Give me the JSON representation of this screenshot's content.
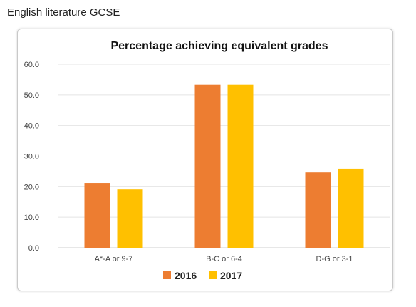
{
  "page": {
    "heading": "English literature GCSE"
  },
  "chart_data": {
    "type": "bar",
    "title": "Percentage achieving equivalent grades",
    "xlabel": "",
    "ylabel": "",
    "categories": [
      "A*-A or 9-7",
      "B-C or 6-4",
      "D-G or 3-1"
    ],
    "series": [
      {
        "name": "2016",
        "values": [
          21.0,
          53.3,
          24.7
        ],
        "color": "#ED7D31"
      },
      {
        "name": "2017",
        "values": [
          19.1,
          53.3,
          25.7
        ],
        "color": "#FFC000"
      }
    ],
    "ylim": [
      0,
      60
    ],
    "yticks": [
      0,
      10,
      20,
      30,
      40,
      50,
      60
    ],
    "ytick_labels": [
      "0.0",
      "10.0",
      "20.0",
      "30.0",
      "40.0",
      "50.0",
      "60.0"
    ],
    "grid": true,
    "legend_position": "bottom"
  }
}
